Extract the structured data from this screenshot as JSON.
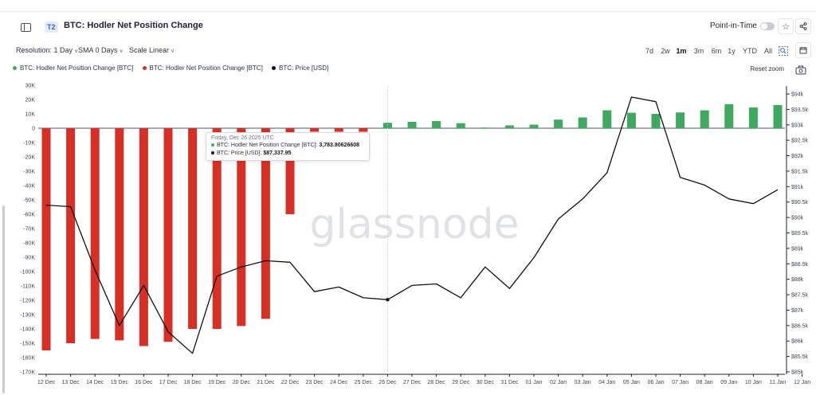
{
  "header": {
    "tier": "T2",
    "title": "BTC: Hodler Net Position Change",
    "point_in_time_label": "Point-in-Time",
    "star_icon": "star-icon",
    "share_icon": "share-icon"
  },
  "toolbar": {
    "resolution": "Resolution: 1 Day",
    "sma": "SMA 0 Days",
    "scale": "Scale Linear",
    "ranges": [
      "7d",
      "2w",
      "1m",
      "3m",
      "6m",
      "1y",
      "YTD",
      "All"
    ],
    "active_range": "1m"
  },
  "legend": [
    {
      "label": "BTC: Hodler Net Position Change [BTC]",
      "color": "#3faa5f"
    },
    {
      "label": "BTC: Hodler Net Position Change [BTC]",
      "color": "#d62f25"
    },
    {
      "label": "BTC: Price [USD]",
      "color": "#111111"
    }
  ],
  "reset_zoom": "Reset zoom",
  "watermark": "glassnode",
  "tooltip": {
    "date": "Friday, Dec 26 2025 UTC",
    "row1_label": "BTC: Hodler Net Position Change [BTC]:",
    "row1_value": "3,783.80626608",
    "row2_label": "BTC: Price [USD]:",
    "row2_value": "$87,337.95"
  },
  "chart_data": {
    "type": "bar",
    "categories": [
      "12 Dec",
      "13 Dec",
      "14 Dec",
      "15 Dec",
      "16 Dec",
      "17 Dec",
      "18 Dec",
      "19 Dec",
      "20 Dec",
      "21 Dec",
      "22 Dec",
      "23 Dec",
      "24 Dec",
      "25 Dec",
      "26 Dec",
      "27 Dec",
      "28 Dec",
      "29 Dec",
      "30 Dec",
      "31 Dec",
      "01 Jan",
      "02 Jan",
      "03 Jan",
      "04 Jan",
      "05 Jan",
      "06 Jan",
      "07 Jan",
      "08 Jan",
      "09 Jan",
      "10 Jan",
      "11 Jan",
      "12 Jan"
    ],
    "bar_series": {
      "name": "BTC: Hodler Net Position Change [BTC]",
      "values": [
        -155000,
        -150000,
        -147000,
        -148000,
        -152000,
        -149000,
        -140000,
        -140000,
        -138000,
        -133000,
        -60000,
        -2500,
        -2500,
        -2500,
        3783.80626608,
        4500,
        5000,
        3500,
        500,
        2000,
        2500,
        6000,
        7500,
        12500,
        10800,
        10000,
        11000,
        12500,
        16800,
        14500,
        16200,
        null
      ],
      "positive_color": "#3faa5f",
      "negative_color": "#d62f25"
    },
    "price_series": {
      "name": "BTC: Price [USD]",
      "color": "#111111",
      "values": [
        90400,
        90350,
        88300,
        86500,
        87800,
        86300,
        85600,
        88100,
        88400,
        88600,
        88550,
        87600,
        87750,
        87400,
        87337.95,
        87800,
        87850,
        87400,
        88400,
        87700,
        88700,
        89950,
        90600,
        91450,
        93900,
        93750,
        91300,
        91050,
        90600,
        90450,
        90900,
        null
      ]
    },
    "ylim_left": [
      -170000,
      30000
    ],
    "yticks_left": [
      30000,
      20000,
      10000,
      0,
      -10000,
      -20000,
      -30000,
      -40000,
      -50000,
      -60000,
      -70000,
      -80000,
      -90000,
      -100000,
      -110000,
      -120000,
      -130000,
      -140000,
      -150000,
      -160000,
      -170000
    ],
    "ytick_labels_left": [
      "30K",
      "20K",
      "10K",
      "0",
      "-10K",
      "-20K",
      "-30K",
      "-40K",
      "-50K",
      "-60K",
      "-70K",
      "-80K",
      "-90K",
      "-100K",
      "-110K",
      "-120K",
      "-130K",
      "-140K",
      "-150K",
      "-160K",
      "-170K"
    ],
    "ylim_right": [
      85000,
      94000
    ],
    "yticks_right": [
      94000,
      93500,
      93000,
      92500,
      92000,
      91500,
      91000,
      90500,
      90000,
      89500,
      89000,
      88500,
      88000,
      87500,
      87000,
      86500,
      86000,
      85500,
      85000
    ],
    "ytick_labels_right": [
      "$94k",
      "$93.5k",
      "$93k",
      "$92.5k",
      "$92k",
      "$91.5k",
      "$91k",
      "$90.5k",
      "$90k",
      "$89.5k",
      "$89k",
      "$88.5k",
      "$88k",
      "$87.5k",
      "$87k",
      "$86.5k",
      "$86k",
      "$85.5k",
      "$85k"
    ],
    "highlight_category": "26 Dec",
    "grid": false,
    "legend_position": "top-left"
  }
}
